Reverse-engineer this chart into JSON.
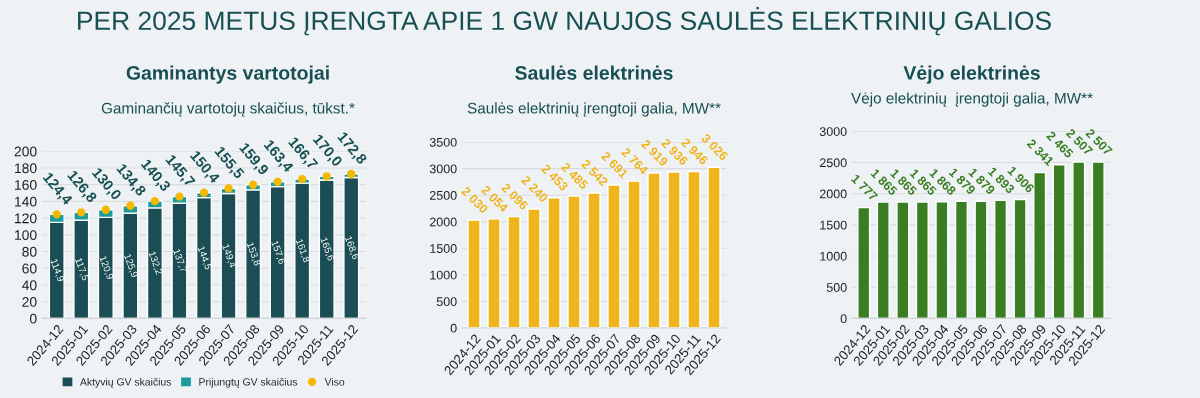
{
  "chart_data": [
    {
      "type": "bar",
      "title": "Gaminantys vartotojai",
      "subtitle": "Gaminančių vartotojų skaičius, tūkst.*",
      "annotations": [
        "PER 2025 METUS ĮRENGTA APIE 1 GW NAUJOS SAULĖS ELEKTRINIŲ GALIOS"
      ],
      "categories": [
        "2024-12",
        "2025-01",
        "2025-02",
        "2025-03",
        "2025-04",
        "2025-05",
        "2025-06",
        "2025-07",
        "2025-08",
        "2025-09",
        "2025-10",
        "2025-11",
        "2025-12"
      ],
      "stacked": true,
      "marker": "circle",
      "grid": "y",
      "legend": "bottom",
      "ylim": [
        0,
        200
      ],
      "yticks": [
        0,
        20,
        40,
        60,
        80,
        100,
        120,
        140,
        160,
        180,
        200
      ],
      "series": [
        {
          "name": "Aktyvių GV skaičius",
          "color": "#1b4d55",
          "values": [
            114.9,
            117.5,
            120.9,
            125.9,
            132.2,
            137.7,
            144.5,
            149.4,
            153.8,
            157.6,
            161.8,
            165.6,
            168.6
          ],
          "value_labels": [
            "114,9",
            "117,5",
            "120,9",
            "125,9",
            "132,2",
            "137,7",
            "144,5",
            "149,4",
            "153,8",
            "157,6",
            "161,8",
            "165,6",
            "168,6"
          ]
        },
        {
          "name": "Prijungtų GV skaičius",
          "color": "#1a9c9c",
          "values": [
            9.5,
            9.3,
            9.1,
            8.9,
            8.1,
            8.0,
            5.9,
            6.1,
            6.1,
            5.8,
            4.9,
            4.4,
            4.2
          ]
        },
        {
          "name": "Viso",
          "type": "scatter",
          "color": "#f5b800",
          "values": [
            124.4,
            126.8,
            130.0,
            134.8,
            140.3,
            145.7,
            150.4,
            155.5,
            159.9,
            163.4,
            166.7,
            170.0,
            172.8
          ],
          "value_labels": [
            "124,4",
            "126,8",
            "130,0",
            "134,8",
            "140,3",
            "145,7",
            "150,4",
            "155,5",
            "159,9",
            "163,4",
            "166,7",
            "170,0",
            "172,8"
          ]
        }
      ]
    },
    {
      "type": "bar",
      "title": "Saulės elektrinės",
      "subtitle": "Saulės elektrinių įrengtoji galia, MW**",
      "categories": [
        "2024-12",
        "2025-01",
        "2025-02",
        "2025-03",
        "2025-04",
        "2025-05",
        "2025-06",
        "2025-07",
        "2025-08",
        "2025-09",
        "2025-10",
        "2025-11",
        "2025-12"
      ],
      "grid": "y",
      "ylim": [
        0,
        3500
      ],
      "yticks": [
        0,
        500,
        1000,
        1500,
        2000,
        2500,
        3000,
        3500
      ],
      "series": [
        {
          "color": "#f0b41c",
          "values": [
            2030,
            2054,
            2096,
            2240,
            2453,
            2485,
            2542,
            2691,
            2764,
            2919,
            2936,
            2946,
            3026
          ],
          "value_labels": [
            "2 030",
            "2 054",
            "2 096",
            "2 240",
            "2 453",
            "2 485",
            "2 542",
            "2 691",
            "2 764",
            "2 919",
            "2 936",
            "2 946",
            "3 026"
          ]
        }
      ]
    },
    {
      "type": "bar",
      "title": "Vėjo elektrinės",
      "subtitle": "Vėjo elektrinių  įrengtoji galia, MW**",
      "categories": [
        "2024-12",
        "2025-01",
        "2025-02",
        "2025-03",
        "2025-04",
        "2025-05",
        "2025-06",
        "2025-07",
        "2025-08",
        "2025-09",
        "2025-10",
        "2025-11",
        "2025-12"
      ],
      "grid": "y",
      "ylim": [
        0,
        3000
      ],
      "yticks": [
        0,
        500,
        1000,
        1500,
        2000,
        2500,
        3000
      ],
      "series": [
        {
          "color": "#3b7d23",
          "values": [
            1777,
            1865,
            1865,
            1865,
            1868,
            1879,
            1879,
            1893,
            1906,
            2341,
            2465,
            2507,
            2507
          ],
          "value_labels": [
            "1 777",
            "1 865",
            "1 865",
            "1 865",
            "1 868",
            "1 879",
            "1 879",
            "1 893",
            "1 906",
            "2 341",
            "2 465",
            "2 507",
            "2 507"
          ]
        }
      ]
    }
  ]
}
